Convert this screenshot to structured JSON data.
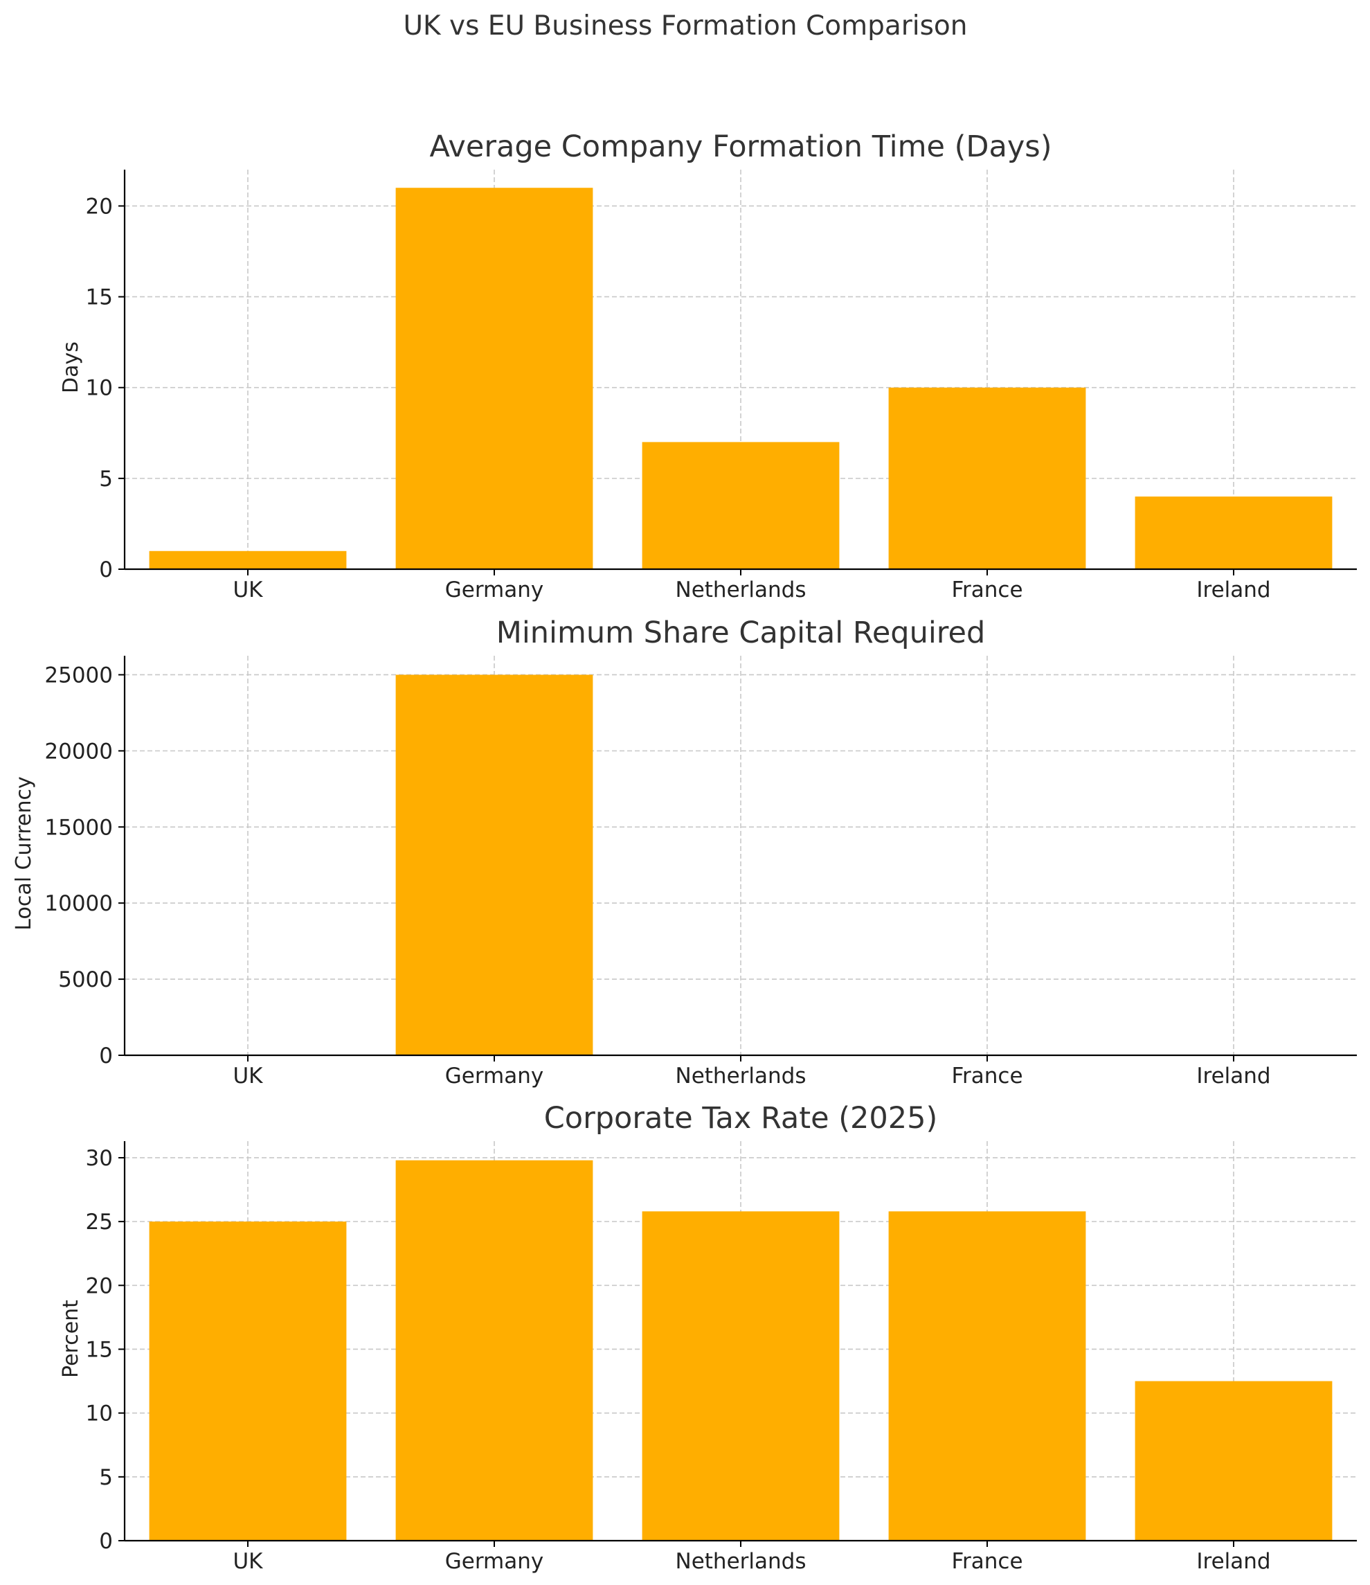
{
  "figure": {
    "title": "UK vs EU Business Formation Comparison"
  },
  "chart_data": [
    {
      "type": "bar",
      "title": "Average Company Formation Time (Days)",
      "xlabel": "",
      "ylabel": "Days",
      "categories": [
        "UK",
        "Germany",
        "Netherlands",
        "France",
        "Ireland"
      ],
      "values": [
        1,
        21,
        7,
        10,
        4
      ],
      "ylim": [
        0,
        22
      ],
      "yticks": [
        0,
        5,
        10,
        15,
        20
      ],
      "grid": true,
      "color": "#FFAE00"
    },
    {
      "type": "bar",
      "title": "Minimum Share Capital Required",
      "xlabel": "",
      "ylabel": "Local Currency",
      "categories": [
        "UK",
        "Germany",
        "Netherlands",
        "France",
        "Ireland"
      ],
      "values": [
        0,
        25000,
        0,
        0,
        0
      ],
      "ylim": [
        0,
        26250
      ],
      "yticks": [
        0,
        5000,
        10000,
        15000,
        20000,
        25000
      ],
      "grid": true,
      "color": "#FFAE00"
    },
    {
      "type": "bar",
      "title": "Corporate Tax Rate (2025)",
      "xlabel": "",
      "ylabel": "Percent",
      "categories": [
        "UK",
        "Germany",
        "Netherlands",
        "France",
        "Ireland"
      ],
      "values": [
        25,
        29.8,
        25.8,
        25.8,
        12.5
      ],
      "ylim": [
        0,
        31.3
      ],
      "yticks": [
        0,
        5,
        10,
        15,
        20,
        25,
        30
      ],
      "grid": true,
      "color": "#FFAE00"
    }
  ]
}
